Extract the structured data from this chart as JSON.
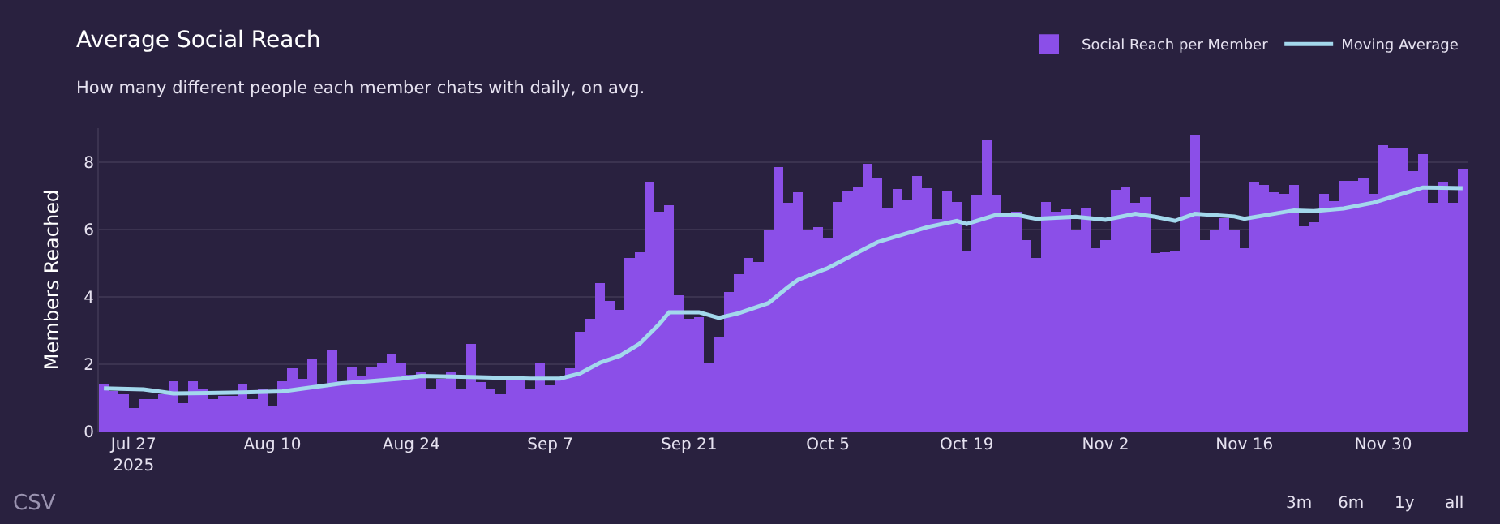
{
  "chart_data": {
    "type": "bar",
    "title": "Average Social Reach",
    "subtitle": "How many different people each member chats with daily, on avg.",
    "ylabel": "Members Reached",
    "x": [
      "2025-07-24",
      "2025-07-25",
      "2025-07-26",
      "2025-07-27",
      "2025-07-28",
      "2025-07-29",
      "2025-07-30",
      "2025-07-31",
      "2025-08-01",
      "2025-08-02",
      "2025-08-03",
      "2025-08-04",
      "2025-08-05",
      "2025-08-06",
      "2025-08-07",
      "2025-08-08",
      "2025-08-09",
      "2025-08-10",
      "2025-08-11",
      "2025-08-12",
      "2025-08-13",
      "2025-08-14",
      "2025-08-15",
      "2025-08-16",
      "2025-08-17",
      "2025-08-18",
      "2025-08-19",
      "2025-08-20",
      "2025-08-21",
      "2025-08-22",
      "2025-08-23",
      "2025-08-24",
      "2025-08-25",
      "2025-08-26",
      "2025-08-27",
      "2025-08-28",
      "2025-08-29",
      "2025-08-30",
      "2025-08-31",
      "2025-09-01",
      "2025-09-02",
      "2025-09-03",
      "2025-09-04",
      "2025-09-05",
      "2025-09-06",
      "2025-09-07",
      "2025-09-08",
      "2025-09-09",
      "2025-09-10",
      "2025-09-11",
      "2025-09-12",
      "2025-09-13",
      "2025-09-14",
      "2025-09-15",
      "2025-09-16",
      "2025-09-17",
      "2025-09-18",
      "2025-09-19",
      "2025-09-20",
      "2025-09-21",
      "2025-09-22",
      "2025-09-23",
      "2025-09-24",
      "2025-09-25",
      "2025-09-26",
      "2025-09-27",
      "2025-09-28",
      "2025-09-29",
      "2025-09-30",
      "2025-10-01",
      "2025-10-02",
      "2025-10-03",
      "2025-10-04",
      "2025-10-05",
      "2025-10-06",
      "2025-10-07",
      "2025-10-08",
      "2025-10-09",
      "2025-10-10",
      "2025-10-11",
      "2025-10-12",
      "2025-10-13",
      "2025-10-14",
      "2025-10-15",
      "2025-10-16",
      "2025-10-17",
      "2025-10-18",
      "2025-10-19",
      "2025-10-20",
      "2025-10-21",
      "2025-10-22",
      "2025-10-23",
      "2025-10-24",
      "2025-10-25",
      "2025-10-26",
      "2025-10-27",
      "2025-10-28",
      "2025-10-29",
      "2025-10-30",
      "2025-10-31",
      "2025-11-01",
      "2025-11-02",
      "2025-11-03",
      "2025-11-04",
      "2025-11-05",
      "2025-11-06",
      "2025-11-07",
      "2025-11-08",
      "2025-11-09",
      "2025-11-10",
      "2025-11-11",
      "2025-11-12",
      "2025-11-13",
      "2025-11-14",
      "2025-11-15",
      "2025-11-16",
      "2025-11-17",
      "2025-11-18",
      "2025-11-19",
      "2025-11-20",
      "2025-11-21",
      "2025-11-22",
      "2025-11-23",
      "2025-11-24",
      "2025-11-25",
      "2025-11-26",
      "2025-11-27",
      "2025-11-28",
      "2025-11-29",
      "2025-11-30",
      "2025-12-01",
      "2025-12-02",
      "2025-12-03",
      "2025-12-04",
      "2025-12-05",
      "2025-12-06",
      "2025-12-07",
      "2025-12-08"
    ],
    "series": [
      {
        "name": "Social Reach per Member",
        "color": "#8b4fe8",
        "values": [
          1.4,
          1.2,
          1.1,
          0.7,
          0.97,
          0.97,
          1.1,
          1.49,
          0.84,
          1.49,
          1.25,
          0.97,
          1.06,
          1.06,
          1.4,
          0.97,
          1.25,
          0.78,
          1.49,
          1.88,
          1.57,
          2.15,
          1.35,
          2.41,
          1.49,
          1.93,
          1.65,
          1.93,
          2.01,
          2.32,
          2.01,
          1.68,
          1.75,
          1.28,
          1.57,
          1.79,
          1.28,
          2.59,
          1.46,
          1.28,
          1.1,
          1.57,
          1.57,
          1.24,
          2.01,
          1.37,
          1.57,
          1.88,
          2.96,
          3.34,
          4.4,
          3.88,
          3.62,
          5.15,
          5.32,
          7.4,
          6.53,
          6.71,
          4.04,
          3.35,
          3.4,
          2.01,
          2.81,
          4.13,
          4.68,
          5.15,
          5.03,
          5.96,
          7.84,
          6.79,
          7.09,
          6.0,
          6.07,
          5.74,
          6.82,
          7.15,
          7.26,
          7.93,
          7.54,
          6.62,
          7.19,
          6.88,
          7.57,
          7.22,
          6.31,
          7.13,
          6.82,
          5.34,
          7.0,
          8.63,
          7.0,
          6.35,
          6.51,
          5.69,
          5.16,
          6.82,
          6.53,
          6.6,
          6.0,
          6.65,
          5.43,
          5.69,
          7.18,
          7.26,
          6.79,
          6.96,
          5.29,
          5.32,
          5.37,
          6.96,
          8.81,
          5.69,
          6.0,
          6.32,
          6.0,
          5.43,
          7.4,
          7.31,
          7.1,
          7.06,
          7.31,
          6.09,
          6.21,
          7.04,
          6.84,
          7.44,
          7.44,
          7.53,
          7.06,
          8.5,
          8.4,
          8.43,
          7.72,
          8.24,
          6.79,
          7.4,
          6.79,
          7.79
        ]
      },
      {
        "name": "Moving Average",
        "type": "line",
        "color": "#a3d8ec",
        "x": [
          "2025-07-24",
          "2025-07-28",
          "2025-07-31",
          "2025-08-07",
          "2025-08-11",
          "2025-08-14",
          "2025-08-17",
          "2025-08-20",
          "2025-08-23",
          "2025-08-25",
          "2025-08-30",
          "2025-09-05",
          "2025-09-08",
          "2025-09-10",
          "2025-09-12",
          "2025-09-14",
          "2025-09-16",
          "2025-09-18",
          "2025-09-19",
          "2025-09-22",
          "2025-09-24",
          "2025-09-26",
          "2025-09-29",
          "2025-10-01",
          "2025-10-02",
          "2025-10-05",
          "2025-10-10",
          "2025-10-15",
          "2025-10-18",
          "2025-10-19",
          "2025-10-22",
          "2025-10-24",
          "2025-10-26",
          "2025-10-30",
          "2025-11-02",
          "2025-11-05",
          "2025-11-07",
          "2025-11-09",
          "2025-11-11",
          "2025-11-15",
          "2025-11-16",
          "2025-11-21",
          "2025-11-23",
          "2025-11-26",
          "2025-11-29",
          "2025-12-02",
          "2025-12-04",
          "2025-12-08"
        ],
        "values": [
          1.28,
          1.25,
          1.13,
          1.16,
          1.19,
          1.31,
          1.43,
          1.5,
          1.57,
          1.65,
          1.62,
          1.57,
          1.57,
          1.72,
          2.04,
          2.24,
          2.6,
          3.19,
          3.54,
          3.54,
          3.37,
          3.51,
          3.81,
          4.29,
          4.5,
          4.85,
          5.62,
          6.06,
          6.25,
          6.16,
          6.43,
          6.43,
          6.31,
          6.37,
          6.28,
          6.46,
          6.37,
          6.25,
          6.46,
          6.38,
          6.31,
          6.56,
          6.54,
          6.62,
          6.79,
          7.06,
          7.24,
          7.22
        ]
      }
    ],
    "xlim": [
      "2025-07-23T12:00",
      "2025-12-08T12:00"
    ],
    "xticks": [
      {
        "value": "2025-07-27",
        "label": "Jul 27\n2025"
      },
      {
        "value": "2025-08-10",
        "label": "Aug 10"
      },
      {
        "value": "2025-08-24",
        "label": "Aug 24"
      },
      {
        "value": "2025-09-07",
        "label": "Sep 7"
      },
      {
        "value": "2025-09-21",
        "label": "Sep 21"
      },
      {
        "value": "2025-10-05",
        "label": "Oct 5"
      },
      {
        "value": "2025-10-19",
        "label": "Oct 19"
      },
      {
        "value": "2025-11-02",
        "label": "Nov 2"
      },
      {
        "value": "2025-11-16",
        "label": "Nov 16"
      },
      {
        "value": "2025-11-30",
        "label": "Nov 30"
      }
    ],
    "ylim": [
      0,
      9
    ],
    "yticks": [
      0,
      2,
      4,
      6,
      8
    ],
    "grid": "y",
    "legend": "top right",
    "annotations": [
      "CSV",
      "3m",
      "6m",
      "1y",
      "all"
    ]
  }
}
